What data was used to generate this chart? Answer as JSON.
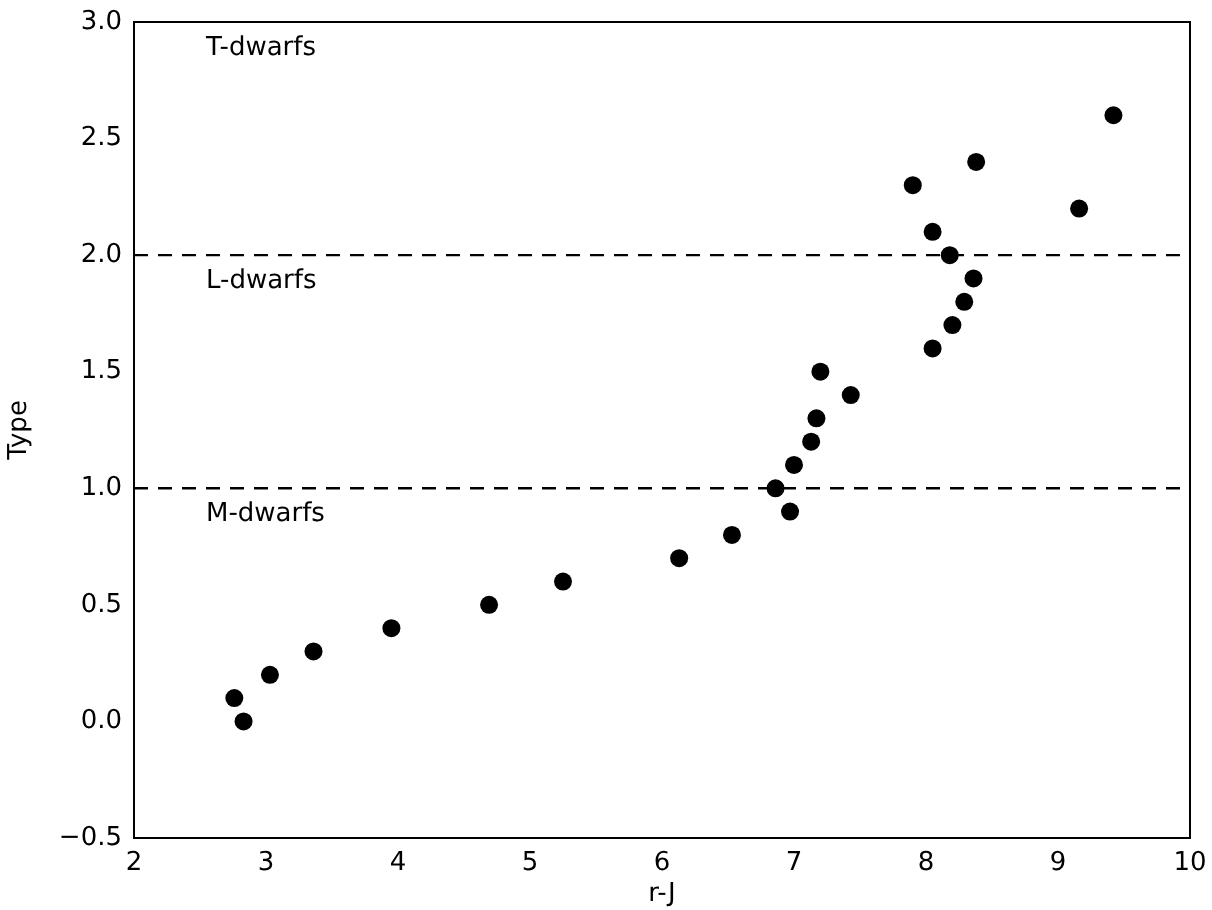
{
  "chart_data": {
    "type": "scatter",
    "xlabel": "r-J",
    "ylabel": "Type",
    "x": [
      2.76,
      2.83,
      3.03,
      3.36,
      3.95,
      4.69,
      5.25,
      6.13,
      6.53,
      6.86,
      6.97,
      7.0,
      7.13,
      7.17,
      7.2,
      7.43,
      7.9,
      8.05,
      8.18,
      8.36,
      8.29,
      8.2,
      8.05,
      8.38,
      9.16,
      9.42
    ],
    "values": [
      0.1,
      0,
      0.2,
      0.3,
      0.4,
      0.5,
      0.6,
      0.7,
      0.8,
      1.0,
      0.9,
      1.1,
      1.2,
      1.3,
      1.5,
      1.4,
      2.3,
      2.1,
      2.0,
      1.9,
      1.8,
      1.7,
      1.6,
      2.4,
      2.2,
      2.6
    ],
    "color": "#000000",
    "marker": "circle",
    "grid": false,
    "legend": false,
    "xlim": [
      2,
      10
    ],
    "xticks": [
      2,
      3,
      4,
      5,
      6,
      7,
      8,
      9,
      10
    ],
    "ylim": [
      -0.5,
      3.0
    ],
    "yticks": [
      {
        "value": -0.5,
        "label": "−0.5"
      },
      {
        "value": 0,
        "label": "0.0"
      },
      {
        "value": 0.5,
        "label": "0.5"
      },
      {
        "value": 1,
        "label": "1.0"
      },
      {
        "value": 1.5,
        "label": "1.5"
      },
      {
        "value": 2,
        "label": "2.0"
      },
      {
        "value": 2.5,
        "label": "2.5"
      },
      {
        "value": 3,
        "label": "3.0"
      }
    ],
    "ref_lines": [
      {
        "axis": "y",
        "value": 1,
        "color": "#000000",
        "line_style": "dashed"
      },
      {
        "axis": "y",
        "value": 2,
        "color": "#000000",
        "line_style": "dashed"
      }
    ],
    "annotations": [
      "T-dwarfs",
      "L-dwarfs",
      "M-dwarfs"
    ]
  }
}
